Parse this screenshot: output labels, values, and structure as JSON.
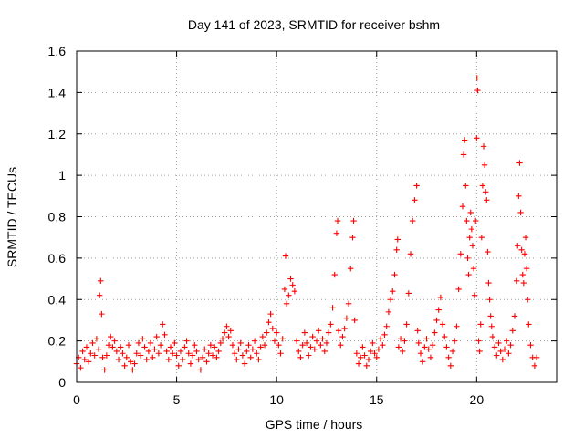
{
  "chart_data": {
    "type": "scatter",
    "title": "Day 141 of 2023, SRMTID for receiver bshm",
    "xlabel": "GPS time / hours",
    "ylabel": "SRMTID / TECUs",
    "xlim": [
      0,
      24
    ],
    "ylim": [
      0,
      1.6
    ],
    "xticks": [
      0,
      5,
      10,
      15,
      20
    ],
    "xtick_labels": [
      "0",
      "5",
      "10",
      "15",
      "20"
    ],
    "yticks": [
      0,
      0.2,
      0.4,
      0.6,
      0.8,
      1,
      1.2,
      1.4,
      1.6
    ],
    "ytick_labels": [
      "0",
      "0.2",
      "0.4",
      "0.6",
      "0.8",
      "1",
      "1.2",
      "1.4",
      "1.6"
    ],
    "grid": true,
    "marker": "+",
    "series": [
      {
        "name": "SRMTID",
        "color": "#ff0000",
        "points": [
          [
            0.0,
            0.09
          ],
          [
            0.1,
            0.12
          ],
          [
            0.2,
            0.07
          ],
          [
            0.3,
            0.15
          ],
          [
            0.4,
            0.11
          ],
          [
            0.5,
            0.17
          ],
          [
            0.6,
            0.1
          ],
          [
            0.7,
            0.14
          ],
          [
            0.8,
            0.19
          ],
          [
            0.9,
            0.13
          ],
          [
            1.0,
            0.21
          ],
          [
            1.1,
            0.16
          ],
          [
            1.15,
            0.42
          ],
          [
            1.2,
            0.49
          ],
          [
            1.25,
            0.33
          ],
          [
            1.3,
            0.12
          ],
          [
            1.4,
            0.06
          ],
          [
            1.5,
            0.13
          ],
          [
            1.6,
            0.18
          ],
          [
            1.7,
            0.22
          ],
          [
            1.8,
            0.17
          ],
          [
            1.9,
            0.2
          ],
          [
            2.0,
            0.15
          ],
          [
            2.1,
            0.11
          ],
          [
            2.2,
            0.17
          ],
          [
            2.3,
            0.14
          ],
          [
            2.4,
            0.08
          ],
          [
            2.5,
            0.12
          ],
          [
            2.6,
            0.18
          ],
          [
            2.7,
            0.1
          ],
          [
            2.8,
            0.06
          ],
          [
            2.9,
            0.09
          ],
          [
            3.0,
            0.14
          ],
          [
            3.1,
            0.19
          ],
          [
            3.2,
            0.13
          ],
          [
            3.3,
            0.21
          ],
          [
            3.4,
            0.17
          ],
          [
            3.5,
            0.11
          ],
          [
            3.6,
            0.15
          ],
          [
            3.7,
            0.19
          ],
          [
            3.8,
            0.12
          ],
          [
            3.9,
            0.16
          ],
          [
            4.0,
            0.22
          ],
          [
            4.1,
            0.14
          ],
          [
            4.2,
            0.18
          ],
          [
            4.3,
            0.28
          ],
          [
            4.4,
            0.23
          ],
          [
            4.5,
            0.15
          ],
          [
            4.6,
            0.11
          ],
          [
            4.7,
            0.17
          ],
          [
            4.8,
            0.14
          ],
          [
            4.9,
            0.19
          ],
          [
            5.0,
            0.13
          ],
          [
            5.1,
            0.08
          ],
          [
            5.2,
            0.15
          ],
          [
            5.3,
            0.11
          ],
          [
            5.4,
            0.17
          ],
          [
            5.5,
            0.2
          ],
          [
            5.6,
            0.14
          ],
          [
            5.7,
            0.09
          ],
          [
            5.8,
            0.13
          ],
          [
            5.9,
            0.18
          ],
          [
            6.0,
            0.15
          ],
          [
            6.1,
            0.11
          ],
          [
            6.2,
            0.06
          ],
          [
            6.3,
            0.12
          ],
          [
            6.4,
            0.16
          ],
          [
            6.5,
            0.1
          ],
          [
            6.6,
            0.14
          ],
          [
            6.7,
            0.18
          ],
          [
            6.8,
            0.13
          ],
          [
            6.9,
            0.17
          ],
          [
            7.0,
            0.12
          ],
          [
            7.1,
            0.15
          ],
          [
            7.2,
            0.19
          ],
          [
            7.3,
            0.21
          ],
          [
            7.4,
            0.24
          ],
          [
            7.5,
            0.27
          ],
          [
            7.6,
            0.22
          ],
          [
            7.7,
            0.25
          ],
          [
            7.8,
            0.18
          ],
          [
            7.9,
            0.14
          ],
          [
            8.0,
            0.11
          ],
          [
            8.1,
            0.16
          ],
          [
            8.2,
            0.19
          ],
          [
            8.3,
            0.13
          ],
          [
            8.4,
            0.09
          ],
          [
            8.5,
            0.15
          ],
          [
            8.6,
            0.18
          ],
          [
            8.7,
            0.12
          ],
          [
            8.8,
            0.16
          ],
          [
            8.9,
            0.2
          ],
          [
            9.0,
            0.14
          ],
          [
            9.1,
            0.11
          ],
          [
            9.2,
            0.17
          ],
          [
            9.3,
            0.22
          ],
          [
            9.4,
            0.18
          ],
          [
            9.5,
            0.24
          ],
          [
            9.6,
            0.29
          ],
          [
            9.7,
            0.33
          ],
          [
            9.8,
            0.26
          ],
          [
            9.9,
            0.2
          ],
          [
            10.0,
            0.24
          ],
          [
            10.1,
            0.18
          ],
          [
            10.2,
            0.14
          ],
          [
            10.3,
            0.21
          ],
          [
            10.4,
            0.45
          ],
          [
            10.45,
            0.61
          ],
          [
            10.5,
            0.38
          ],
          [
            10.6,
            0.42
          ],
          [
            10.7,
            0.5
          ],
          [
            10.8,
            0.47
          ],
          [
            10.9,
            0.44
          ],
          [
            11.0,
            0.2
          ],
          [
            11.1,
            0.15
          ],
          [
            11.2,
            0.12
          ],
          [
            11.3,
            0.18
          ],
          [
            11.4,
            0.24
          ],
          [
            11.5,
            0.19
          ],
          [
            11.6,
            0.13
          ],
          [
            11.7,
            0.17
          ],
          [
            11.8,
            0.22
          ],
          [
            11.9,
            0.16
          ],
          [
            12.0,
            0.2
          ],
          [
            12.1,
            0.25
          ],
          [
            12.2,
            0.18
          ],
          [
            12.3,
            0.21
          ],
          [
            12.4,
            0.15
          ],
          [
            12.5,
            0.19
          ],
          [
            12.6,
            0.24
          ],
          [
            12.7,
            0.28
          ],
          [
            12.8,
            0.36
          ],
          [
            12.9,
            0.52
          ],
          [
            13.0,
            0.72
          ],
          [
            13.05,
            0.78
          ],
          [
            13.1,
            0.25
          ],
          [
            13.2,
            0.18
          ],
          [
            13.3,
            0.22
          ],
          [
            13.4,
            0.26
          ],
          [
            13.5,
            0.31
          ],
          [
            13.6,
            0.38
          ],
          [
            13.7,
            0.55
          ],
          [
            13.8,
            0.7
          ],
          [
            13.85,
            0.78
          ],
          [
            13.9,
            0.3
          ],
          [
            14.0,
            0.14
          ],
          [
            14.1,
            0.09
          ],
          [
            14.2,
            0.12
          ],
          [
            14.3,
            0.17
          ],
          [
            14.4,
            0.13
          ],
          [
            14.5,
            0.08
          ],
          [
            14.6,
            0.11
          ],
          [
            14.7,
            0.15
          ],
          [
            14.8,
            0.19
          ],
          [
            14.9,
            0.14
          ],
          [
            15.0,
            0.12
          ],
          [
            15.1,
            0.16
          ],
          [
            15.2,
            0.21
          ],
          [
            15.3,
            0.18
          ],
          [
            15.4,
            0.23
          ],
          [
            15.5,
            0.27
          ],
          [
            15.6,
            0.34
          ],
          [
            15.7,
            0.4
          ],
          [
            15.8,
            0.44
          ],
          [
            15.9,
            0.52
          ],
          [
            16.0,
            0.64
          ],
          [
            16.05,
            0.69
          ],
          [
            16.1,
            0.17
          ],
          [
            16.2,
            0.21
          ],
          [
            16.3,
            0.15
          ],
          [
            16.4,
            0.2
          ],
          [
            16.5,
            0.28
          ],
          [
            16.6,
            0.43
          ],
          [
            16.7,
            0.62
          ],
          [
            16.8,
            0.78
          ],
          [
            16.9,
            0.88
          ],
          [
            17.0,
            0.95
          ],
          [
            17.05,
            0.25
          ],
          [
            17.1,
            0.19
          ],
          [
            17.2,
            0.14
          ],
          [
            17.3,
            0.1
          ],
          [
            17.4,
            0.17
          ],
          [
            17.5,
            0.21
          ],
          [
            17.6,
            0.16
          ],
          [
            17.7,
            0.12
          ],
          [
            17.8,
            0.18
          ],
          [
            17.9,
            0.24
          ],
          [
            18.0,
            0.3
          ],
          [
            18.1,
            0.35
          ],
          [
            18.2,
            0.41
          ],
          [
            18.3,
            0.28
          ],
          [
            18.4,
            0.22
          ],
          [
            18.5,
            0.17
          ],
          [
            18.6,
            0.12
          ],
          [
            18.7,
            0.08
          ],
          [
            18.8,
            0.15
          ],
          [
            18.9,
            0.2
          ],
          [
            19.0,
            0.27
          ],
          [
            19.1,
            0.45
          ],
          [
            19.2,
            0.62
          ],
          [
            19.3,
            0.85
          ],
          [
            19.35,
            1.1
          ],
          [
            19.4,
            1.17
          ],
          [
            19.45,
            0.95
          ],
          [
            19.5,
            0.78
          ],
          [
            19.55,
            0.6
          ],
          [
            19.6,
            0.52
          ],
          [
            19.65,
            0.7
          ],
          [
            19.7,
            0.82
          ],
          [
            19.75,
            0.74
          ],
          [
            19.8,
            0.66
          ],
          [
            19.85,
            0.55
          ],
          [
            19.9,
            0.42
          ],
          [
            19.95,
            0.78
          ],
          [
            20.0,
            1.18
          ],
          [
            20.02,
            1.47
          ],
          [
            20.05,
            1.41
          ],
          [
            20.1,
            0.2
          ],
          [
            20.15,
            0.15
          ],
          [
            20.2,
            0.28
          ],
          [
            20.25,
            0.7
          ],
          [
            20.3,
            0.95
          ],
          [
            20.35,
            1.14
          ],
          [
            20.4,
            1.05
          ],
          [
            20.45,
            0.92
          ],
          [
            20.5,
            0.88
          ],
          [
            20.55,
            0.63
          ],
          [
            20.6,
            0.48
          ],
          [
            20.65,
            0.4
          ],
          [
            20.7,
            0.32
          ],
          [
            20.75,
            0.27
          ],
          [
            20.8,
            0.22
          ],
          [
            20.9,
            0.17
          ],
          [
            21.0,
            0.13
          ],
          [
            21.1,
            0.19
          ],
          [
            21.2,
            0.15
          ],
          [
            21.3,
            0.11
          ],
          [
            21.4,
            0.16
          ],
          [
            21.5,
            0.2
          ],
          [
            21.6,
            0.14
          ],
          [
            21.7,
            0.18
          ],
          [
            21.8,
            0.25
          ],
          [
            21.9,
            0.32
          ],
          [
            22.0,
            0.49
          ],
          [
            22.05,
            0.66
          ],
          [
            22.1,
            0.9
          ],
          [
            22.15,
            1.06
          ],
          [
            22.2,
            0.82
          ],
          [
            22.25,
            0.64
          ],
          [
            22.3,
            0.52
          ],
          [
            22.35,
            0.48
          ],
          [
            22.4,
            0.62
          ],
          [
            22.45,
            0.7
          ],
          [
            22.5,
            0.55
          ],
          [
            22.55,
            0.4
          ],
          [
            22.6,
            0.28
          ],
          [
            22.7,
            0.18
          ],
          [
            22.8,
            0.12
          ],
          [
            22.9,
            0.08
          ],
          [
            23.0,
            0.12
          ]
        ]
      }
    ]
  }
}
